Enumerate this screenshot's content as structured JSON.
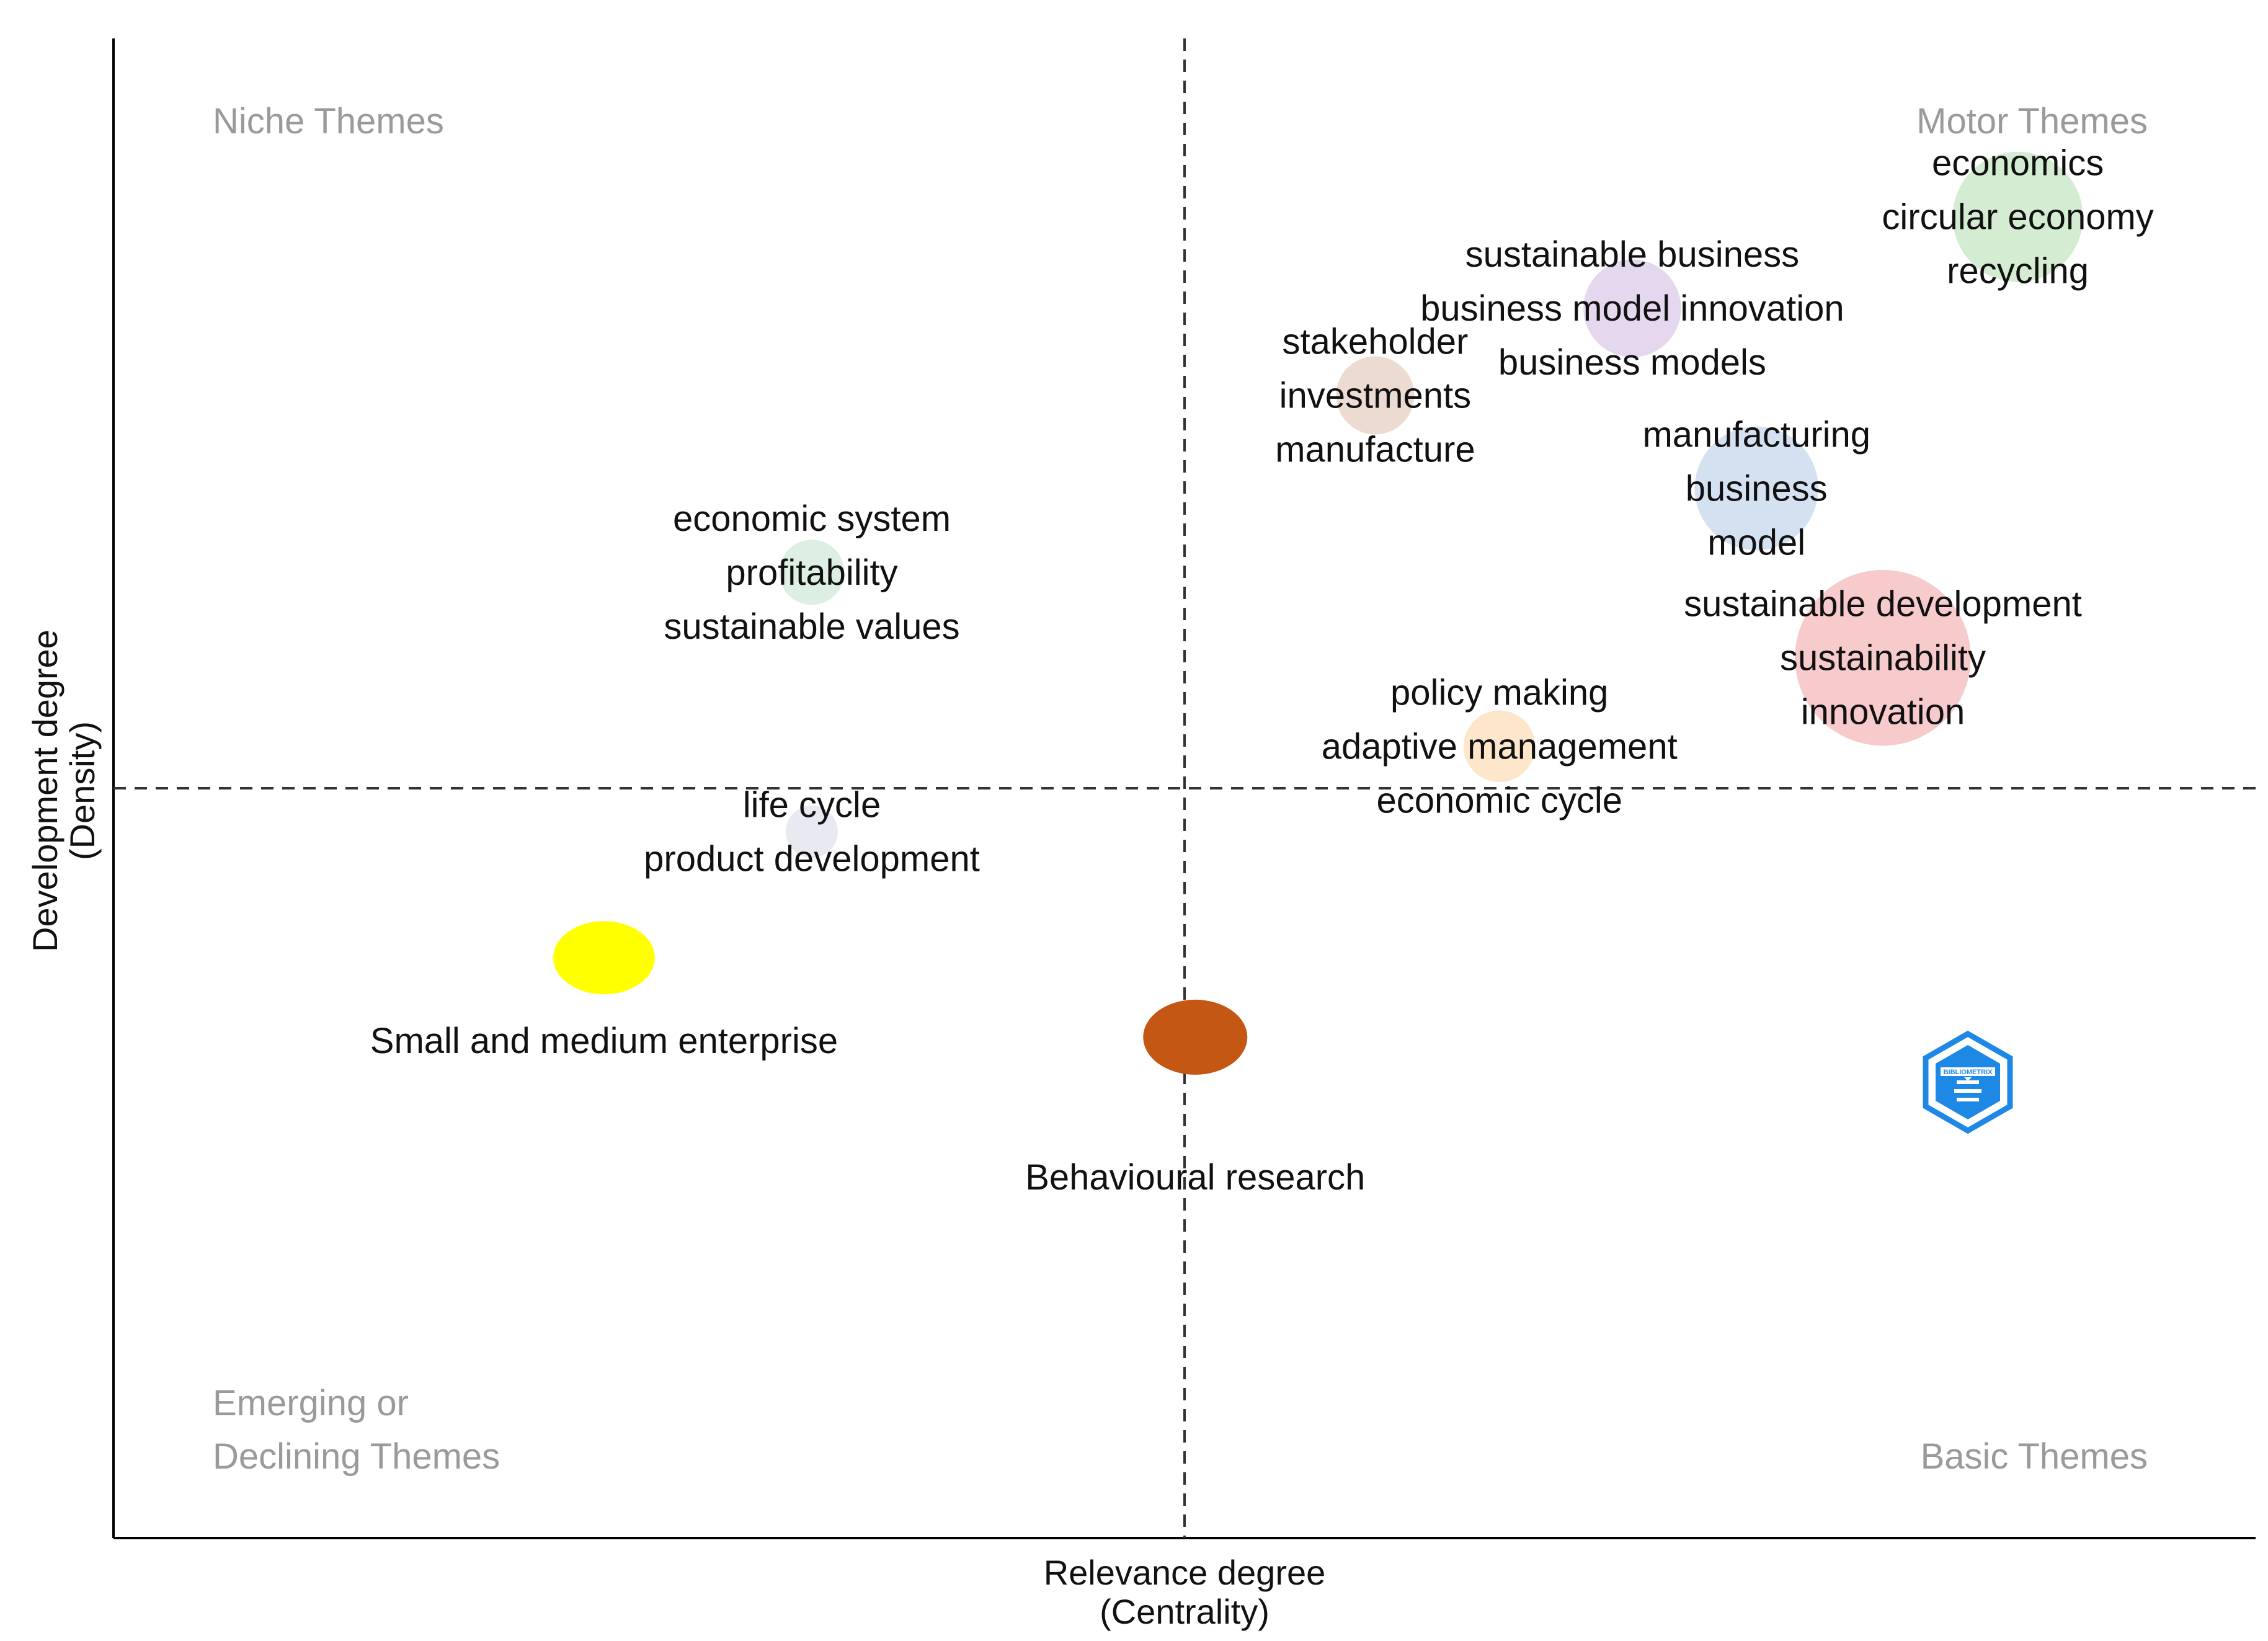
{
  "chart_data": {
    "type": "scatter",
    "title": "",
    "xlabel": "Relevance degree",
    "xlabel_sub": "(Centrality)",
    "ylabel": "Development degree",
    "ylabel_sub": "(Density)",
    "xlim": [
      0,
      100
    ],
    "ylim": [
      0,
      100
    ],
    "x_divider": 50,
    "y_divider": 50,
    "grid": false,
    "quadrants": {
      "top_left": [
        "Niche Themes"
      ],
      "top_right": [
        "Motor Themes"
      ],
      "bottom_left": [
        "Emerging or",
        "Declining Themes"
      ],
      "bottom_right": [
        "Basic Themes"
      ]
    },
    "clusters": [
      {
        "x": 88.9,
        "y": 88.1,
        "size": 1.0,
        "color": "#b7dfb3",
        "opacity": 0.6,
        "labels": [
          "economics",
          "circular economy",
          "recycling"
        ]
      },
      {
        "x": 70.9,
        "y": 82.0,
        "size": 0.75,
        "color": "#d3bde3",
        "opacity": 0.6,
        "labels": [
          "sustainable business",
          "business model innovation",
          "business models"
        ]
      },
      {
        "x": 58.9,
        "y": 76.2,
        "size": 0.6,
        "color": "#dfc3b3",
        "opacity": 0.6,
        "labels": [
          "stakeholder",
          "investments",
          "manufacture"
        ]
      },
      {
        "x": 76.7,
        "y": 70.0,
        "size": 0.95,
        "color": "#b7cde6",
        "opacity": 0.6,
        "labels": [
          "manufacturing",
          "business",
          "model"
        ]
      },
      {
        "x": 32.6,
        "y": 64.4,
        "size": 0.5,
        "color": "#c7e3cf",
        "opacity": 0.6,
        "labels": [
          "economic system",
          "profitability",
          "sustainable values"
        ]
      },
      {
        "x": 82.6,
        "y": 58.7,
        "size": 1.35,
        "color": "#f2a6aa",
        "opacity": 0.6,
        "labels": [
          "sustainable development",
          "sustainability",
          "innovation"
        ]
      },
      {
        "x": 64.7,
        "y": 52.8,
        "size": 0.55,
        "color": "#fdd5a8",
        "opacity": 0.6,
        "labels": [
          "policy making",
          "adaptive management",
          "economic cycle"
        ]
      },
      {
        "x": 32.6,
        "y": 47.1,
        "size": 0.4,
        "color": "#d8dbe8",
        "opacity": 0.6,
        "labels": [
          "life cycle",
          "product development"
        ]
      },
      {
        "x": 22.9,
        "y": 38.7,
        "size": 0.78,
        "color": "#ffff00",
        "opacity": 1.0,
        "labels": [
          "Small and medium enterprise"
        ],
        "label_below": true
      },
      {
        "x": 50.5,
        "y": 33.4,
        "size": 0.8,
        "color": "#c45713",
        "opacity": 1.0,
        "labels": [
          "Behavioural research"
        ],
        "label_below": true
      }
    ]
  },
  "watermark": {
    "icon": "bibliometrix-logo-icon",
    "text": "BIBLIOMETRIX",
    "color": "#1e88e5"
  }
}
